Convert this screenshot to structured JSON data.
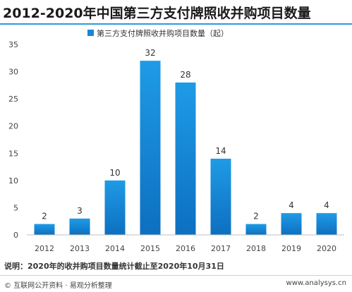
{
  "title": "2012-2020年中国第三方支付牌照收并购项目数量",
  "note": "说明：2020年的收并购项目数量统计截止至2020年10月31日",
  "source": "© 互联网公开资料 · 易观分析整理",
  "site": "www.analysys.cn",
  "colors": {
    "bar_top": "#1f9be6",
    "bar_bottom": "#0d6fc0",
    "accent": "#2a9be0"
  },
  "chart_data": {
    "type": "bar",
    "categories": [
      "2012",
      "2013",
      "2014",
      "2015",
      "2016",
      "2017",
      "2018",
      "2019",
      "2020"
    ],
    "series": [
      {
        "name": "第三方支付牌照收并购项目数量（起）",
        "values": [
          2,
          3,
          10,
          32,
          28,
          14,
          2,
          4,
          4
        ]
      }
    ],
    "ylim": [
      0,
      35
    ],
    "yticks": [
      0,
      5,
      10,
      15,
      20,
      25,
      30,
      35
    ],
    "legend": "top-center",
    "grid": false
  }
}
